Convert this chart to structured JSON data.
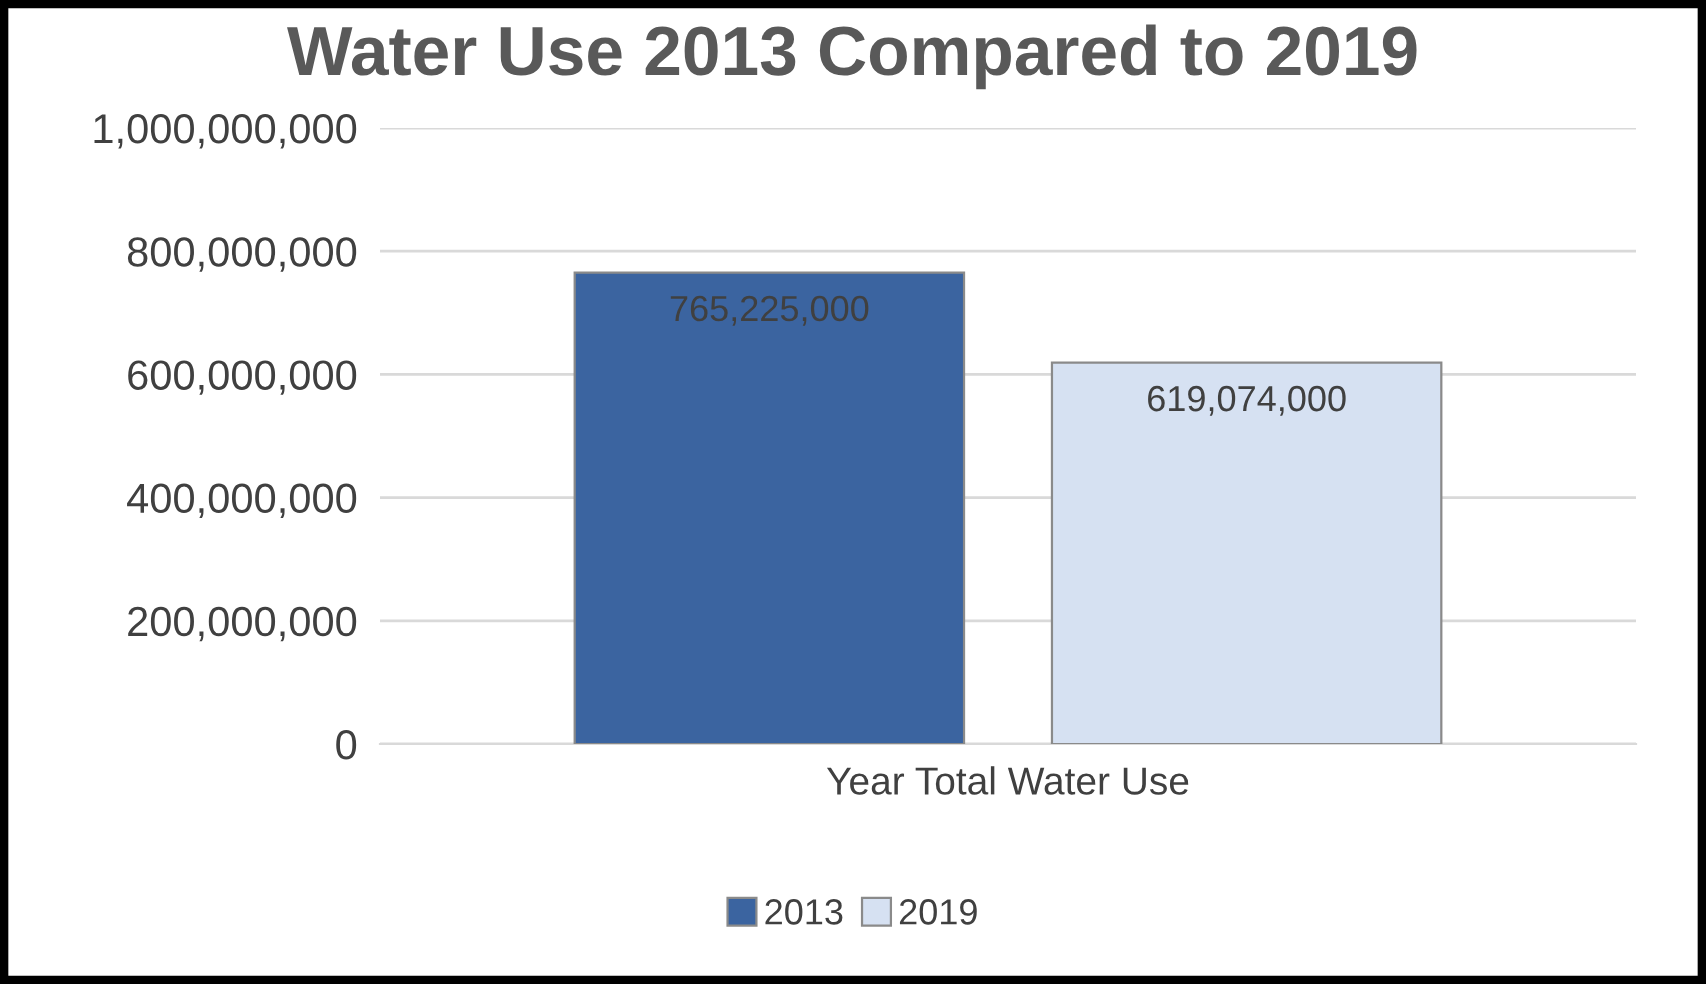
{
  "chart_data": {
    "type": "bar",
    "title": "Water Use 2013 Compared to 2019",
    "categories": [
      "Year Total Water Use"
    ],
    "series": [
      {
        "name": "2013",
        "color": "#3b64a0",
        "values": [
          765225000
        ],
        "value_labels": [
          "765,225,000"
        ]
      },
      {
        "name": "2019",
        "color": "#d6e1f2",
        "values": [
          619074000
        ],
        "value_labels": [
          "619,074,000"
        ]
      }
    ],
    "ylim": [
      0,
      1000000000
    ],
    "yticks": [
      {
        "value": 0,
        "label": "0"
      },
      {
        "value": 200000000,
        "label": "200,000,000"
      },
      {
        "value": 400000000,
        "label": "400,000,000"
      },
      {
        "value": 600000000,
        "label": "600,000,000"
      },
      {
        "value": 800000000,
        "label": "800,000,000"
      },
      {
        "value": 1000000000,
        "label": "1,000,000,000"
      }
    ],
    "grid": "y",
    "legend": "bottom"
  }
}
